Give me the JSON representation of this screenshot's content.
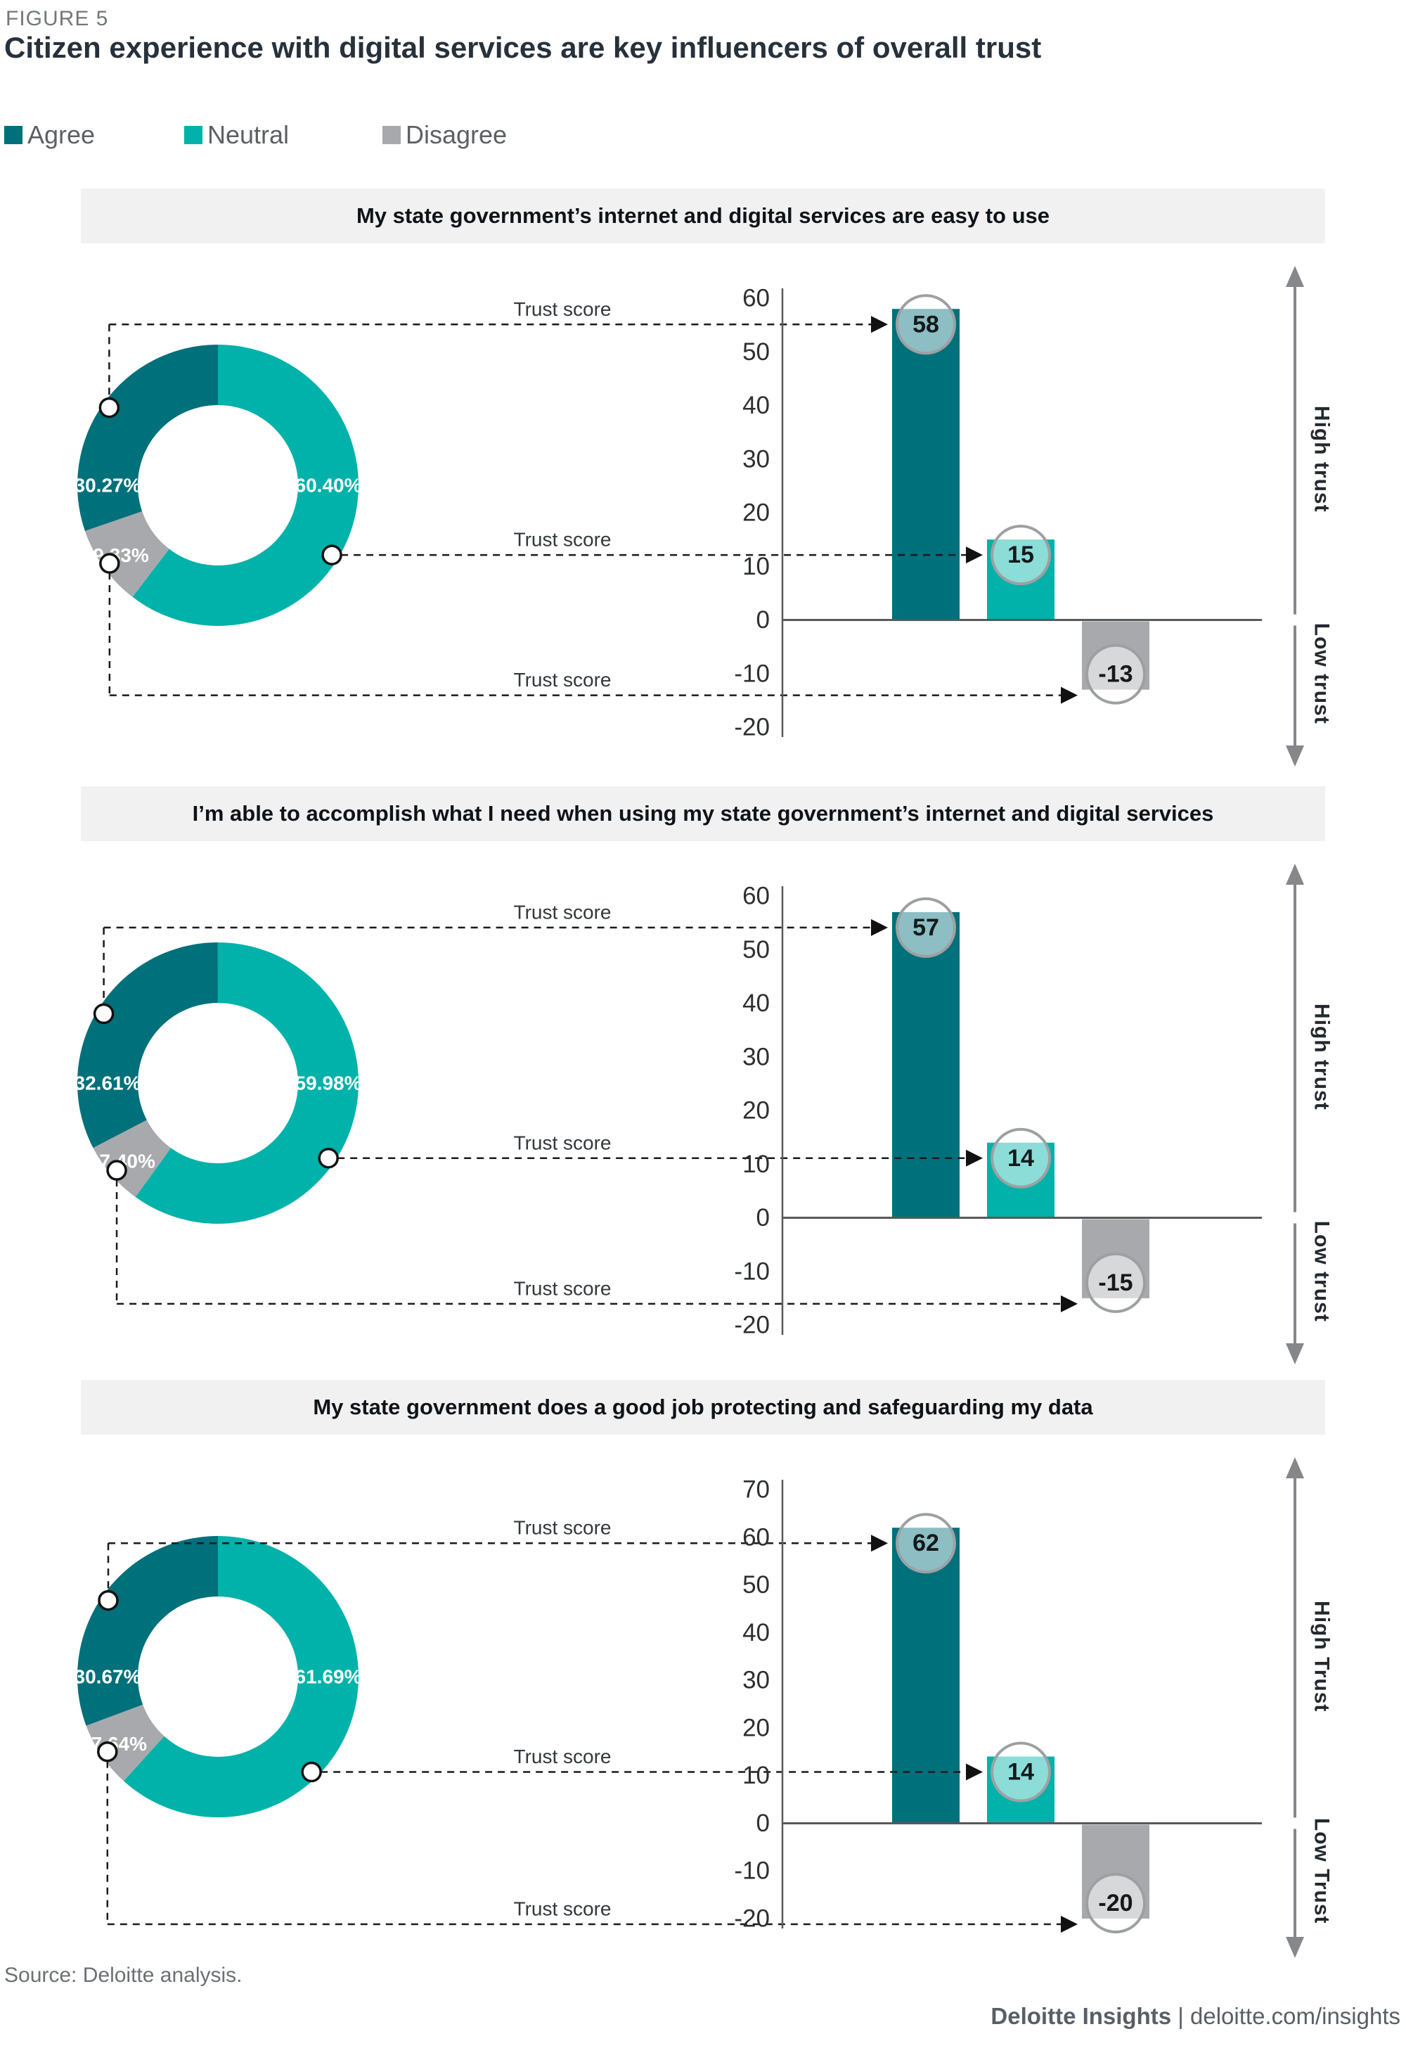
{
  "figure_label": "FIGURE 5",
  "title": "Citizen experience with digital services are key influencers of overall trust",
  "legend": {
    "items": [
      {
        "label": "Agree",
        "color": "#00707b"
      },
      {
        "label": "Neutral",
        "color": "#00b2a9"
      },
      {
        "label": "Disagree",
        "color": "#a7a9ac"
      }
    ]
  },
  "leader_label": "Trust score",
  "colors": {
    "agree": "#00707b",
    "neutral": "#00b2a9",
    "disagree": "#a7a9ac",
    "badge_ring": "#9da0a2",
    "axis": "#57595b",
    "leader": "#1a1a1a",
    "arrow": "#85878a"
  },
  "chart_data": [
    {
      "type": "donut+bar",
      "statement": "My state government’s internet and digital services are easy to use",
      "donut": {
        "type": "donut",
        "categories": [
          "Agree",
          "Neutral",
          "Disagree"
        ],
        "values": [
          30.27,
          60.4,
          9.33
        ],
        "labels": [
          "30.27%",
          "60.40%",
          "9.33%"
        ]
      },
      "bar": {
        "type": "bar",
        "categories": [
          "Agree",
          "Neutral",
          "Disagree"
        ],
        "values": [
          58,
          15,
          -13
        ],
        "ylim": [
          -20,
          60
        ],
        "ytick_step": 10
      },
      "high_label": "High trust",
      "low_label": "Low trust"
    },
    {
      "type": "donut+bar",
      "statement": "I’m able to accomplish what I need when using my state government’s internet and digital services",
      "donut": {
        "type": "donut",
        "categories": [
          "Agree",
          "Neutral",
          "Disagree"
        ],
        "values": [
          32.61,
          59.98,
          7.4
        ],
        "labels": [
          "32.61%",
          "59.98%",
          "7.40%"
        ]
      },
      "bar": {
        "type": "bar",
        "categories": [
          "Agree",
          "Neutral",
          "Disagree"
        ],
        "values": [
          57,
          14,
          -15
        ],
        "ylim": [
          -20,
          60
        ],
        "ytick_step": 10
      },
      "high_label": "High trust",
      "low_label": "Low trust"
    },
    {
      "type": "donut+bar",
      "statement": "My state government does a good job protecting and safeguarding my data",
      "donut": {
        "type": "donut",
        "categories": [
          "Agree",
          "Neutral",
          "Disagree"
        ],
        "values": [
          30.67,
          61.69,
          7.64
        ],
        "labels": [
          "30.67%",
          "61.69%",
          "7.64%"
        ]
      },
      "bar": {
        "type": "bar",
        "categories": [
          "Agree",
          "Neutral",
          "Disagree"
        ],
        "values": [
          62,
          14,
          -20
        ],
        "ylim": [
          -20,
          70
        ],
        "ytick_step": 10
      },
      "high_label": "High Trust",
      "low_label": "Low Trust"
    }
  ],
  "footer": {
    "source": "Source: Deloitte analysis.",
    "brand": "Deloitte Insights",
    "separator": " | ",
    "url": "deloitte.com/insights"
  }
}
